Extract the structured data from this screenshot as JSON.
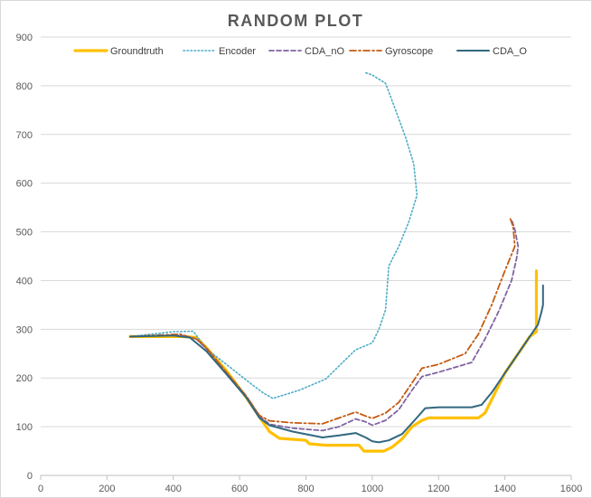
{
  "chart_data": {
    "type": "line",
    "title": "RANDOM PLOT",
    "xlabel": "",
    "ylabel": "",
    "xlim": [
      0,
      1600
    ],
    "ylim": [
      0,
      900
    ],
    "xticks": [
      "0",
      "200",
      "400",
      "600",
      "800",
      "1000",
      "1200",
      "1400",
      "1600"
    ],
    "yticks": [
      "0",
      "100",
      "200",
      "300",
      "400",
      "500",
      "600",
      "700",
      "800",
      "900"
    ],
    "grid": "horizontal",
    "legend_position": "top",
    "series": [
      {
        "name": "Groundtruth",
        "color": "#ffc000",
        "style": "solid-thick",
        "points": [
          [
            270,
            285
          ],
          [
            430,
            285
          ],
          [
            470,
            283
          ],
          [
            500,
            262
          ],
          [
            560,
            215
          ],
          [
            620,
            160
          ],
          [
            660,
            120
          ],
          [
            690,
            90
          ],
          [
            720,
            76
          ],
          [
            800,
            72
          ],
          [
            810,
            65
          ],
          [
            860,
            62
          ],
          [
            960,
            62
          ],
          [
            975,
            50
          ],
          [
            1035,
            50
          ],
          [
            1060,
            58
          ],
          [
            1090,
            75
          ],
          [
            1120,
            100
          ],
          [
            1150,
            113
          ],
          [
            1170,
            118
          ],
          [
            1320,
            118
          ],
          [
            1340,
            128
          ],
          [
            1400,
            210
          ],
          [
            1450,
            260
          ],
          [
            1475,
            285
          ],
          [
            1495,
            295
          ],
          [
            1495,
            330
          ],
          [
            1495,
            420
          ]
        ]
      },
      {
        "name": "Encoder",
        "color": "#4bacc6",
        "style": "dotted",
        "points": [
          [
            270,
            285
          ],
          [
            400,
            295
          ],
          [
            460,
            296
          ],
          [
            500,
            260
          ],
          [
            560,
            228
          ],
          [
            640,
            185
          ],
          [
            670,
            170
          ],
          [
            700,
            158
          ],
          [
            780,
            175
          ],
          [
            860,
            198
          ],
          [
            900,
            225
          ],
          [
            950,
            258
          ],
          [
            1000,
            272
          ],
          [
            1020,
            300
          ],
          [
            1040,
            340
          ],
          [
            1050,
            430
          ],
          [
            1080,
            470
          ],
          [
            1110,
            520
          ],
          [
            1135,
            575
          ],
          [
            1125,
            640
          ],
          [
            1100,
            695
          ],
          [
            1065,
            760
          ],
          [
            1040,
            805
          ],
          [
            1000,
            822
          ],
          [
            975,
            828
          ]
        ]
      },
      {
        "name": "CDA_nO",
        "color": "#8064a2",
        "style": "dashed",
        "points": [
          [
            270,
            285
          ],
          [
            420,
            288
          ],
          [
            470,
            280
          ],
          [
            500,
            260
          ],
          [
            560,
            212
          ],
          [
            620,
            163
          ],
          [
            660,
            122
          ],
          [
            690,
            105
          ],
          [
            760,
            97
          ],
          [
            850,
            92
          ],
          [
            900,
            100
          ],
          [
            950,
            116
          ],
          [
            980,
            110
          ],
          [
            1000,
            103
          ],
          [
            1040,
            113
          ],
          [
            1080,
            135
          ],
          [
            1120,
            175
          ],
          [
            1150,
            203
          ],
          [
            1200,
            212
          ],
          [
            1300,
            232
          ],
          [
            1340,
            280
          ],
          [
            1380,
            335
          ],
          [
            1420,
            400
          ],
          [
            1435,
            445
          ],
          [
            1440,
            470
          ],
          [
            1430,
            505
          ],
          [
            1420,
            525
          ]
        ]
      },
      {
        "name": "Gyroscope",
        "color": "#c55a11",
        "style": "dash-dot",
        "points": [
          [
            270,
            285
          ],
          [
            420,
            290
          ],
          [
            470,
            280
          ],
          [
            500,
            262
          ],
          [
            560,
            212
          ],
          [
            620,
            163
          ],
          [
            660,
            123
          ],
          [
            690,
            112
          ],
          [
            760,
            108
          ],
          [
            850,
            106
          ],
          [
            900,
            118
          ],
          [
            950,
            130
          ],
          [
            980,
            122
          ],
          [
            1000,
            117
          ],
          [
            1040,
            128
          ],
          [
            1080,
            150
          ],
          [
            1120,
            190
          ],
          [
            1150,
            220
          ],
          [
            1200,
            228
          ],
          [
            1280,
            250
          ],
          [
            1320,
            290
          ],
          [
            1360,
            350
          ],
          [
            1400,
            420
          ],
          [
            1430,
            470
          ],
          [
            1425,
            510
          ],
          [
            1415,
            530
          ]
        ]
      },
      {
        "name": "CDA_O",
        "color": "#31687f",
        "style": "solid",
        "points": [
          [
            270,
            285
          ],
          [
            400,
            287
          ],
          [
            450,
            283
          ],
          [
            500,
            255
          ],
          [
            560,
            208
          ],
          [
            620,
            160
          ],
          [
            660,
            118
          ],
          [
            690,
            103
          ],
          [
            760,
            90
          ],
          [
            850,
            78
          ],
          [
            900,
            82
          ],
          [
            950,
            87
          ],
          [
            980,
            78
          ],
          [
            1000,
            70
          ],
          [
            1020,
            68
          ],
          [
            1050,
            72
          ],
          [
            1090,
            85
          ],
          [
            1130,
            115
          ],
          [
            1160,
            138
          ],
          [
            1200,
            140
          ],
          [
            1300,
            140
          ],
          [
            1330,
            145
          ],
          [
            1360,
            170
          ],
          [
            1400,
            210
          ],
          [
            1440,
            250
          ],
          [
            1480,
            290
          ],
          [
            1500,
            310
          ],
          [
            1510,
            335
          ],
          [
            1515,
            350
          ],
          [
            1515,
            390
          ]
        ]
      }
    ]
  }
}
